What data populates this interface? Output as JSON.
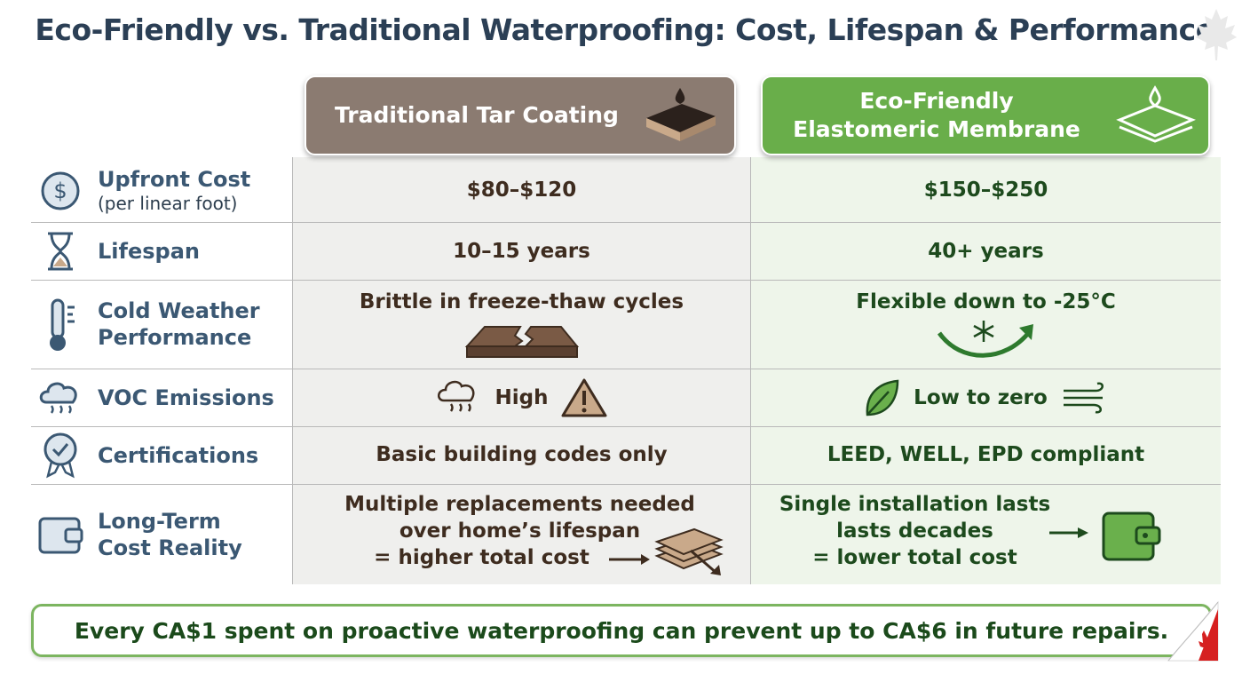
{
  "title": "Eco-Friendly vs. Traditional Waterproofing: Cost, Lifespan & Performance",
  "columns": [
    {
      "lines": [
        "Traditional Tar Coating"
      ]
    },
    {
      "lines": [
        "Eco-Friendly",
        "Elastomeric Membrane"
      ]
    }
  ],
  "rows": [
    {
      "label": [
        "Upfront Cost"
      ],
      "sublabel": "(per linear foot)",
      "cells": [
        [
          "$80–$120"
        ],
        [
          "$150–$250"
        ]
      ]
    },
    {
      "label": [
        "Lifespan"
      ],
      "cells": [
        [
          "10–15 years"
        ],
        [
          "40+ years"
        ]
      ]
    },
    {
      "label": [
        "Cold Weather",
        "Performance"
      ],
      "cells": [
        [
          "Brittle in freeze-thaw cycles"
        ],
        [
          "Flexible down to -25°C"
        ]
      ]
    },
    {
      "label": [
        "VOC Emissions"
      ],
      "cells": [
        [
          "High"
        ],
        [
          "Low to zero"
        ]
      ]
    },
    {
      "label": [
        "Certifications"
      ],
      "cells": [
        [
          "Basic building codes only"
        ],
        [
          "LEED, WELL, EPD compliant"
        ]
      ]
    },
    {
      "label": [
        "Long-Term",
        "Cost Reality"
      ],
      "cells": [
        [
          "Multiple replacements needed",
          "over home’s lifespan",
          "= higher total cost"
        ],
        [
          "Single installation lasts",
          "lasts decades",
          "= lower total cost"
        ]
      ]
    }
  ],
  "footer": "Every CA$1 spent on proactive waterproofing can prevent up to CA$6 in future repairs."
}
